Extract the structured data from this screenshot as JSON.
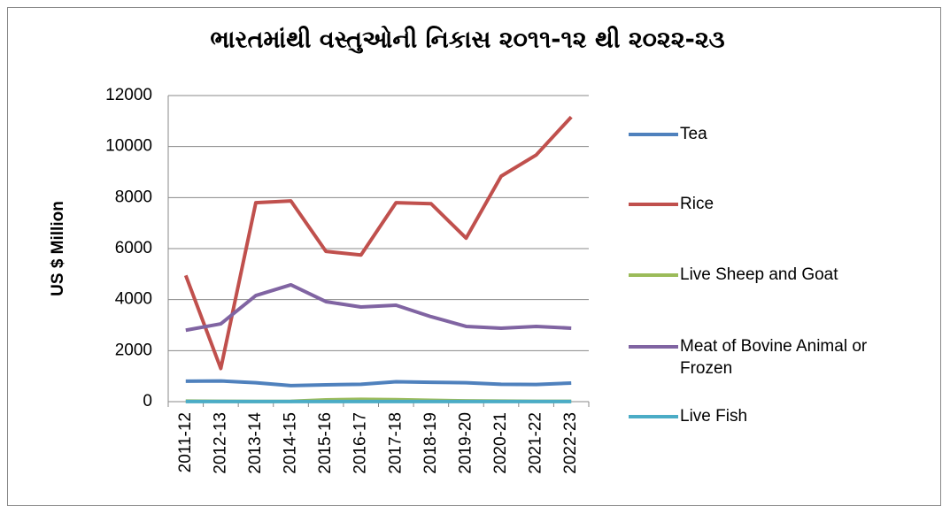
{
  "chart_data": {
    "type": "line",
    "title": "ભારતમાંથી વસ્તુઓની નિકાસ ૨૦૧૧-૧૨ થી ૨૦૨૨-૨૩",
    "ylabel": "US  $ Million",
    "categories": [
      "2011-12",
      "2012-13",
      "2013-14",
      "2014-15",
      "2015-16",
      "2016-17",
      "2017-18",
      "2018-19",
      "2019-20",
      "2020-21",
      "2021-22",
      "2022-23"
    ],
    "series": [
      {
        "name": "Tea",
        "color": "#4f81bd",
        "values": [
          800,
          810,
          740,
          630,
          660,
          680,
          780,
          760,
          740,
          680,
          670,
          730
        ]
      },
      {
        "name": "Rice",
        "color": "#c0504d",
        "values": [
          4950,
          1300,
          7800,
          7870,
          5890,
          5750,
          7800,
          7760,
          6410,
          8840,
          9670,
          11160
        ]
      },
      {
        "name": "Live Sheep and Goat",
        "color": "#9bbb59",
        "values": [
          20,
          15,
          10,
          15,
          70,
          90,
          80,
          50,
          30,
          20,
          15,
          15
        ]
      },
      {
        "name": "Meat of Bovine Animal or Frozen",
        "color": "#8064a2",
        "values": [
          2800,
          3050,
          4160,
          4580,
          3920,
          3710,
          3780,
          3330,
          2950,
          2880,
          2950,
          2880
        ]
      },
      {
        "name": "Live Fish",
        "color": "#4bacc6",
        "values": [
          5,
          5,
          5,
          5,
          5,
          5,
          5,
          5,
          5,
          5,
          5,
          5
        ]
      }
    ],
    "ylim": [
      0,
      12000
    ],
    "yticks": [
      0,
      2000,
      4000,
      6000,
      8000,
      10000,
      12000
    ],
    "grid": true,
    "legend": "right"
  }
}
